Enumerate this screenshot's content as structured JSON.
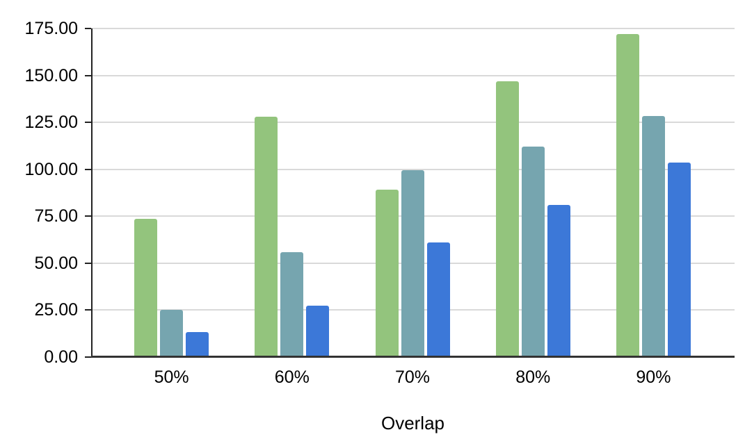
{
  "chart_data": {
    "type": "bar",
    "title": "",
    "xlabel": "Overlap",
    "ylabel": "",
    "categories": [
      "50%",
      "60%",
      "70%",
      "80%",
      "90%"
    ],
    "series": [
      {
        "name": "green",
        "color": "#93c47d",
        "values": [
          73.5,
          128,
          89,
          147,
          172
        ]
      },
      {
        "name": "teal",
        "color": "#76a5af",
        "values": [
          25,
          56,
          99.5,
          112,
          128.5
        ]
      },
      {
        "name": "blue",
        "color": "#3c78d8",
        "values": [
          13.5,
          27.5,
          61,
          81,
          103.5
        ]
      }
    ],
    "ylim": [
      0,
      175
    ],
    "ytick_step": 25,
    "ytick_labels": [
      "0.00",
      "25.00",
      "50.00",
      "75.00",
      "100.00",
      "125.00",
      "150.00",
      "175.00"
    ],
    "grid": true,
    "legend": "none",
    "colors": {
      "gridline": "#d9d9d9",
      "axis": "#222222",
      "baseline": "#333333",
      "text": "#000000",
      "background": "#ffffff"
    }
  }
}
